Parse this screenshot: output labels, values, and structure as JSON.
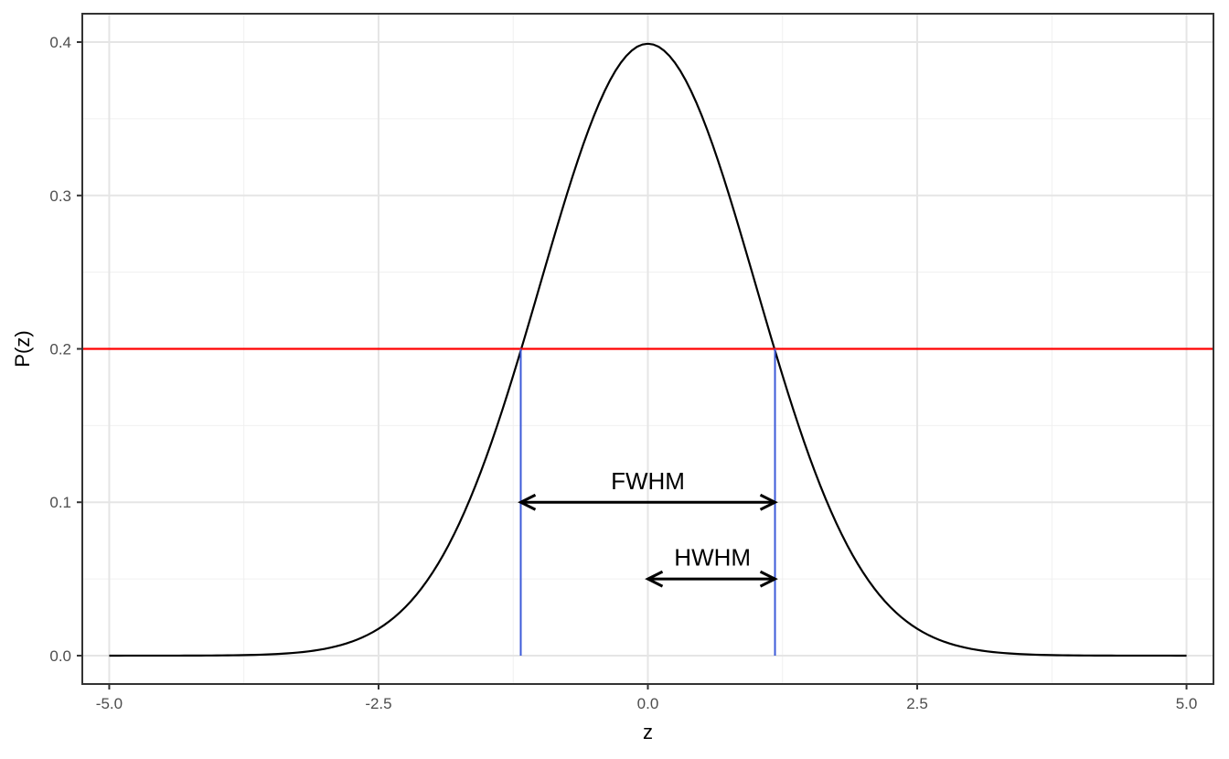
{
  "chart_data": {
    "type": "line",
    "title": "",
    "xlabel": "z",
    "ylabel": "P(z)",
    "xlim": [
      -5.25,
      5.25
    ],
    "ylim": [
      -0.0185,
      0.4185
    ],
    "x_ticks": [
      -5.0,
      -2.5,
      0.0,
      2.5,
      5.0
    ],
    "x_tick_labels": [
      "-5.0",
      "-2.5",
      "0.0",
      "2.5",
      "5.0"
    ],
    "y_ticks": [
      0.0,
      0.1,
      0.2,
      0.3,
      0.4
    ],
    "y_tick_labels": [
      "0.0",
      "0.1",
      "0.2",
      "0.3",
      "0.4"
    ],
    "grid": true,
    "series": [
      {
        "name": "",
        "distribution": "standard normal density",
        "x_range": [
          -5,
          5
        ],
        "color": "#000000"
      }
    ],
    "hline": {
      "y": 0.2,
      "color": "#ff0000"
    },
    "vlines": [
      {
        "x": -1.18,
        "y_from": 0.0,
        "y_to": 0.2,
        "color": "#3d5bd9"
      },
      {
        "x": 1.18,
        "y_from": 0.0,
        "y_to": 0.2,
        "color": "#3d5bd9"
      }
    ],
    "annotations": [
      {
        "label": "FWHM",
        "arrow_x": [
          -1.18,
          1.18
        ],
        "arrow_y": 0.1,
        "label_x": 0.0,
        "label_y": 0.114
      },
      {
        "label": "HWHM",
        "arrow_x": [
          0.0,
          1.18
        ],
        "arrow_y": 0.05,
        "label_x": 0.6,
        "label_y": 0.064
      }
    ]
  }
}
